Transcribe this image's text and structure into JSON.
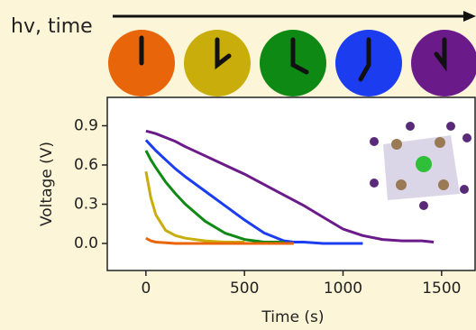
{
  "chart_data": {
    "type": "line",
    "title": "hv, time",
    "xlabel": "Time (s)",
    "ylabel": "Voltage (V)",
    "x": [
      0,
      25,
      50,
      100,
      150,
      200,
      300,
      400,
      500,
      600,
      700,
      750,
      800,
      900,
      1000,
      1100,
      1200,
      1300,
      1400,
      1460
    ],
    "series": [
      {
        "color": "#e8650a",
        "values": [
          0.04,
          0.02,
          0.01,
          0.005,
          0,
          0,
          0,
          0,
          0,
          0,
          0,
          0,
          null,
          null,
          null,
          null,
          null,
          null,
          null,
          null
        ]
      },
      {
        "color": "#c9ad0a",
        "values": [
          0.55,
          0.35,
          0.22,
          0.1,
          0.06,
          0.04,
          0.02,
          0.01,
          0.01,
          null,
          null,
          null,
          null,
          null,
          null,
          null,
          null,
          null,
          null,
          null
        ]
      },
      {
        "color": "#0e8a14",
        "values": [
          0.71,
          0.64,
          0.58,
          0.47,
          0.38,
          0.3,
          0.17,
          0.08,
          0.03,
          0.01,
          0.01,
          null,
          null,
          null,
          null,
          null,
          null,
          null,
          null,
          null
        ]
      },
      {
        "color": "#1c3cf0",
        "values": [
          0.79,
          0.75,
          0.71,
          0.64,
          0.57,
          0.51,
          0.4,
          0.29,
          0.18,
          0.08,
          0.02,
          0.01,
          0.01,
          0,
          0,
          0,
          null,
          null,
          null,
          null
        ]
      },
      {
        "color": "#6b1a8a",
        "values": [
          0.86,
          0.85,
          0.84,
          0.81,
          0.78,
          0.74,
          0.67,
          0.6,
          0.53,
          0.45,
          0.37,
          0.33,
          0.29,
          0.2,
          0.11,
          0.06,
          0.03,
          0.02,
          0.02,
          0.01
        ]
      }
    ],
    "xlim": [
      -196,
      1670
    ],
    "ylim": [
      -0.207,
      1.117
    ],
    "xticks": [
      0,
      500,
      1000,
      1500
    ],
    "yticks": [
      {
        "value": 0,
        "label": "0.0"
      },
      0.3,
      0.6,
      0.9
    ]
  }
}
